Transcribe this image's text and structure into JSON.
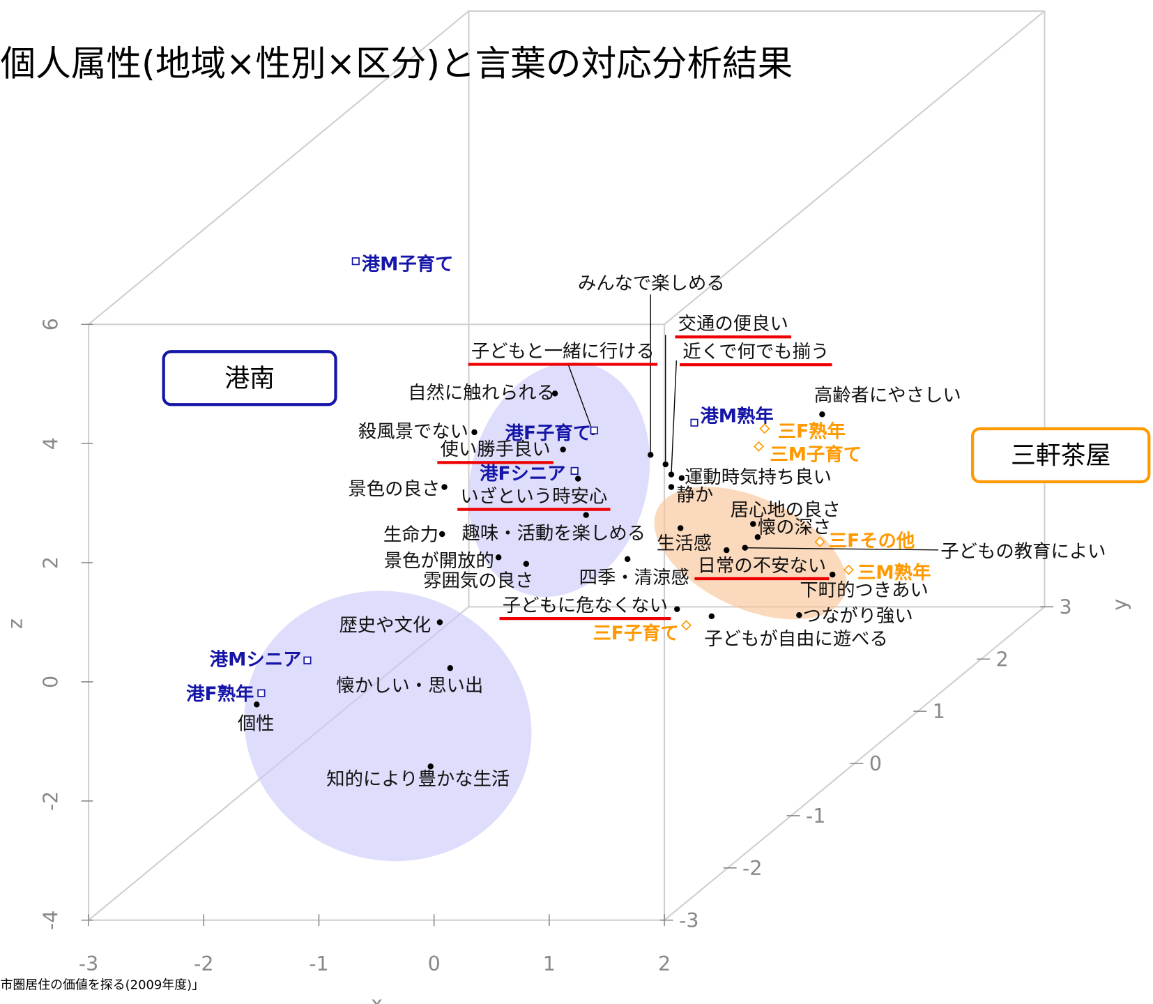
{
  "chart_data": {
    "type": "scatter3d",
    "title": "個人属性(地域×性別×区分)と言葉の対応分析結果",
    "source": "市圏居住の価値を探る(2009年度)」",
    "xlabel": "x",
    "ylabel": "y",
    "zlabel": "z",
    "xlim": [
      -3,
      2
    ],
    "ylim": [
      -3,
      3
    ],
    "zlim": [
      -4,
      6
    ],
    "xticks": [
      -3,
      -2,
      -1,
      0,
      1,
      2
    ],
    "yticks": [
      -3,
      -2,
      -1,
      0,
      1,
      2,
      3
    ],
    "zticks": [
      -4,
      -2,
      0,
      2,
      4,
      6
    ],
    "series": [
      {
        "color": "#000000",
        "marker": "dot",
        "labels": [
          "みんなで楽しめる",
          "交通の便良い",
          "近くで何でも揃う",
          "子どもと一緒に行ける",
          "自然に触れられる",
          "高齢者にやさしい",
          "殺風景でない",
          "使い勝手良い",
          "景色の良さ",
          "いざという時安心",
          "趣味・活動を楽しめる",
          "運動時気持ち良い",
          "静か",
          "居心地の良さ",
          "懐の深さ",
          "生活感",
          "子どもの教育によい",
          "日常の不安ない",
          "下町的つきあい",
          "生命力",
          "景色が開放的",
          "雰囲気の良さ",
          "四季・清涼感",
          "子どもに危なくない",
          "子どもが自由に遊べる",
          "つながり強い",
          "歴史や文化",
          "懐かしい・思い出",
          "個性",
          "知的により豊かな生活"
        ],
        "x": [
          1.88,
          2.01,
          2.06,
          1.38,
          1.05,
          3.37,
          0.35,
          1.12,
          0.09,
          1.25,
          1.32,
          2.15,
          2.06,
          2.77,
          2.81,
          2.14,
          2.7,
          2.54,
          3.46,
          0.07,
          0.56,
          0.8,
          1.68,
          2.11,
          2.41,
          3.17,
          0.05,
          0.14,
          -1.54,
          -0.03
        ],
        "z": [
          3.81,
          3.65,
          3.48,
          4.19,
          4.84,
          4.49,
          4.19,
          3.9,
          3.27,
          3.41,
          2.8,
          3.42,
          3.27,
          2.65,
          2.43,
          2.58,
          2.25,
          2.21,
          1.8,
          2.48,
          2.09,
          1.98,
          2.06,
          1.22,
          1.1,
          1.12,
          1.0,
          0.23,
          -0.38,
          -1.42
        ],
        "highlight": [
          false,
          true,
          true,
          true,
          false,
          false,
          false,
          true,
          false,
          true,
          false,
          false,
          false,
          false,
          false,
          false,
          false,
          true,
          false,
          false,
          false,
          false,
          false,
          true,
          false,
          false,
          false,
          false,
          false,
          false
        ]
      },
      {
        "name": "港南",
        "color": "#1515a8",
        "marker": "square",
        "labels": [
          "港M子育て",
          "港F子育て",
          "港Fシニア",
          "港M熟年",
          "港Mシニア",
          "港F熟年"
        ],
        "x": [
          -0.68,
          1.39,
          1.22,
          2.26,
          -1.1,
          -1.5
        ],
        "z": [
          7.06,
          4.22,
          3.54,
          4.35,
          0.36,
          -0.19
        ]
      },
      {
        "name": "三軒茶屋",
        "color": "#ff9900",
        "marker": "diamond",
        "labels": [
          "三F熟年",
          "三M子育て",
          "三Fその他",
          "三M熟年",
          "三F子育て"
        ],
        "x": [
          2.87,
          2.82,
          3.35,
          3.6,
          2.19
        ],
        "z": [
          4.25,
          3.95,
          2.35,
          1.88,
          0.95
        ]
      }
    ]
  }
}
